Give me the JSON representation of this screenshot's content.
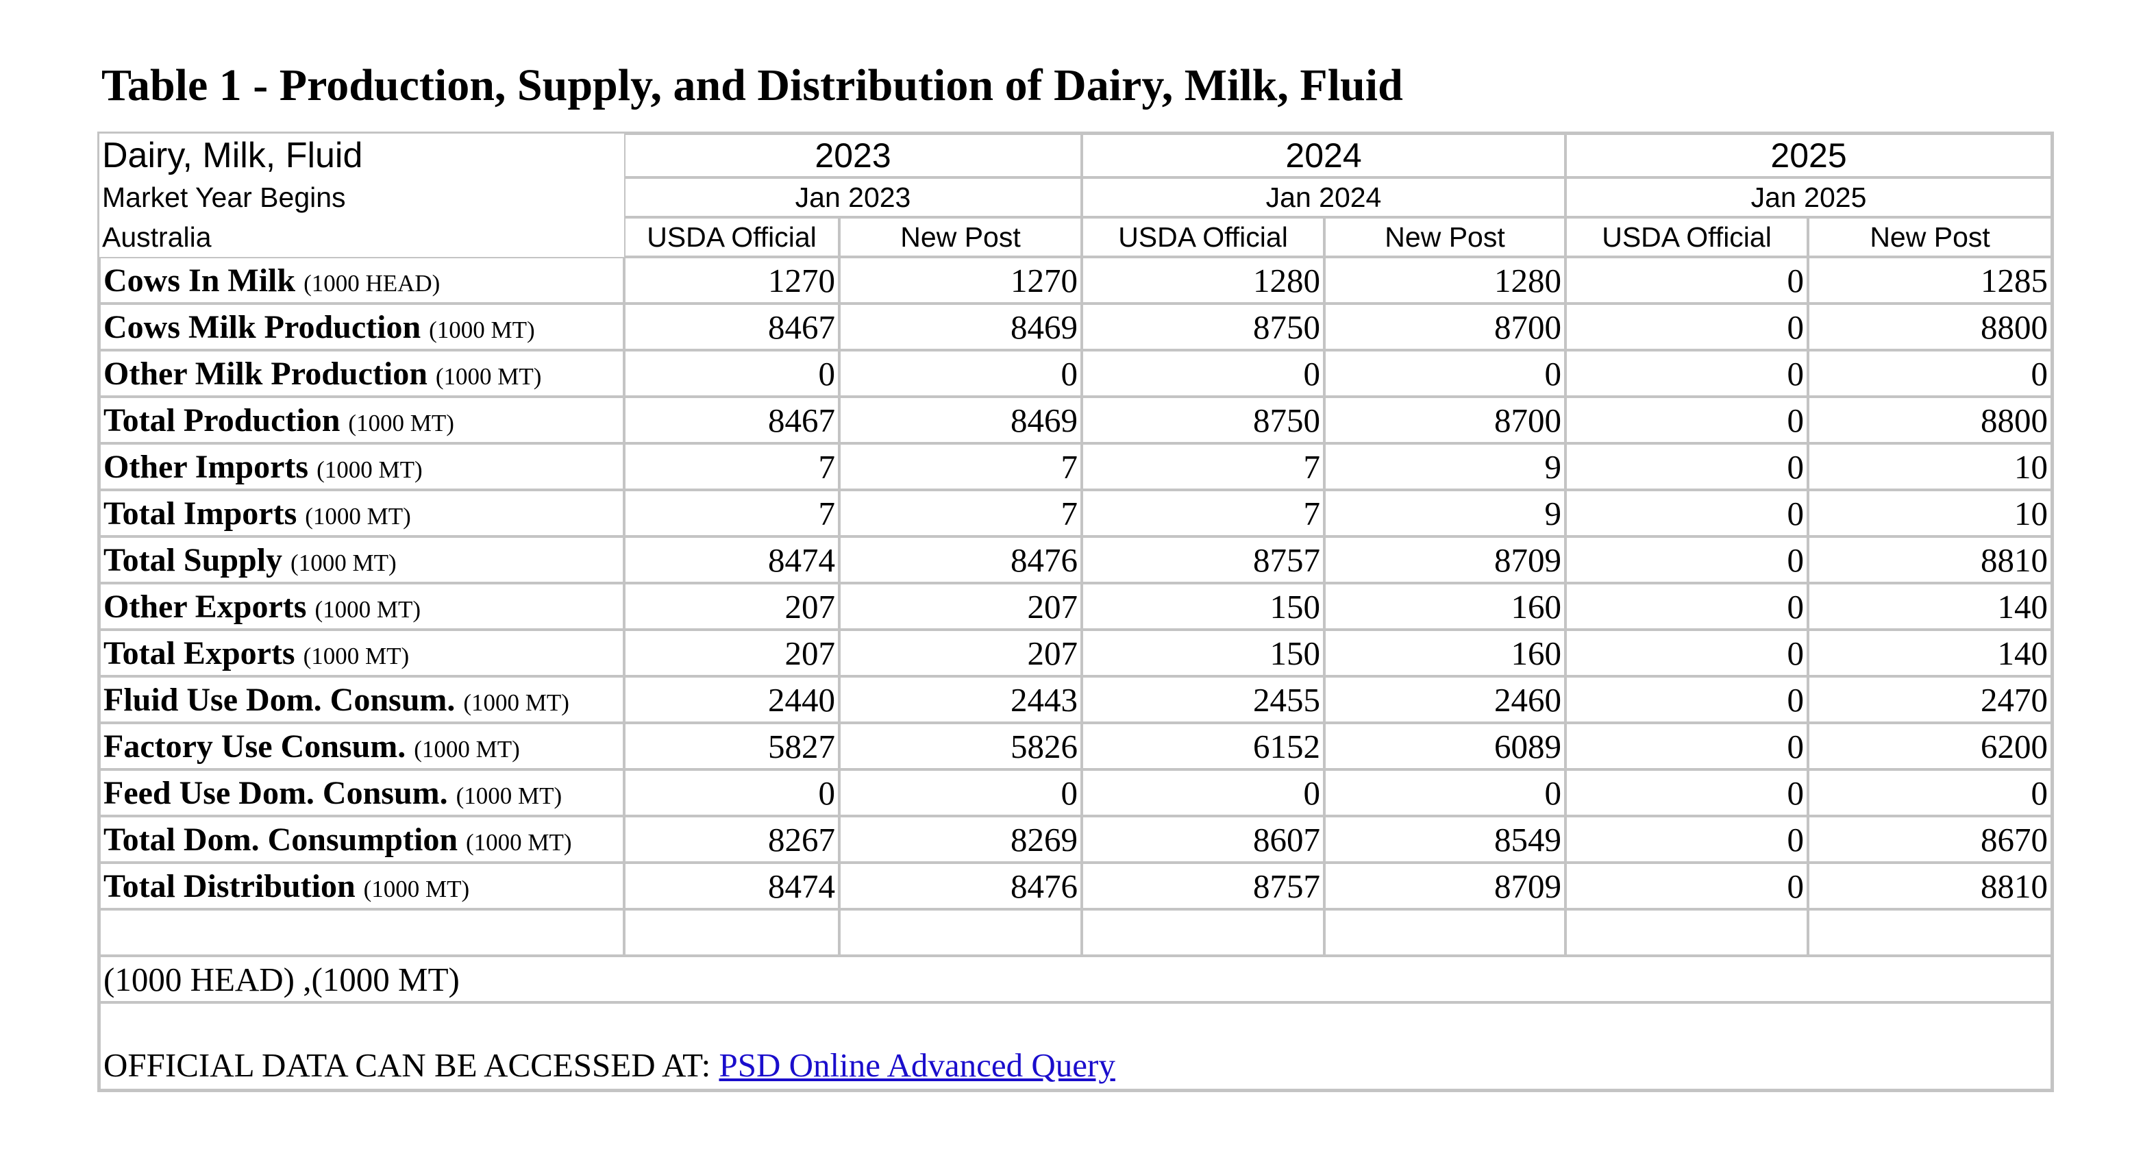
{
  "header": {
    "title": "Table 1 - Production, Supply, and Distribution of Dairy, Milk, Fluid"
  },
  "table": {
    "corner": [
      "Dairy, Milk, Fluid",
      "Market Year Begins",
      "Australia"
    ],
    "years": [
      "2023",
      "2024",
      "2025"
    ],
    "year_begins": [
      "Jan 2023",
      "Jan 2024",
      "Jan 2025"
    ],
    "sources": [
      "USDA Official",
      "New Post",
      "USDA Official",
      "New Post",
      "USDA Official",
      "New Post"
    ],
    "rows": [
      {
        "label": "Cows In Milk",
        "unit": "(1000 HEAD)",
        "values": [
          1270,
          1270,
          1280,
          1280,
          0,
          1285
        ]
      },
      {
        "label": "Cows Milk Production",
        "unit": "(1000 MT)",
        "values": [
          8467,
          8469,
          8750,
          8700,
          0,
          8800
        ]
      },
      {
        "label": "Other Milk Production",
        "unit": "(1000 MT)",
        "values": [
          0,
          0,
          0,
          0,
          0,
          0
        ]
      },
      {
        "label": "Total Production",
        "unit": "(1000 MT)",
        "values": [
          8467,
          8469,
          8750,
          8700,
          0,
          8800
        ]
      },
      {
        "label": "Other Imports",
        "unit": "(1000 MT)",
        "values": [
          7,
          7,
          7,
          9,
          0,
          10
        ]
      },
      {
        "label": "Total Imports",
        "unit": "(1000 MT)",
        "values": [
          7,
          7,
          7,
          9,
          0,
          10
        ]
      },
      {
        "label": "Total Supply",
        "unit": "(1000 MT)",
        "values": [
          8474,
          8476,
          8757,
          8709,
          0,
          8810
        ]
      },
      {
        "label": "Other Exports",
        "unit": "(1000 MT)",
        "values": [
          207,
          207,
          150,
          160,
          0,
          140
        ]
      },
      {
        "label": "Total Exports",
        "unit": "(1000 MT)",
        "values": [
          207,
          207,
          150,
          160,
          0,
          140
        ]
      },
      {
        "label": "Fluid Use Dom. Consum.",
        "unit": "(1000 MT)",
        "values": [
          2440,
          2443,
          2455,
          2460,
          0,
          2470
        ]
      },
      {
        "label": "Factory Use Consum.",
        "unit": "(1000 MT)",
        "values": [
          5827,
          5826,
          6152,
          6089,
          0,
          6200
        ]
      },
      {
        "label": "Feed Use Dom. Consum.",
        "unit": "(1000 MT)",
        "values": [
          0,
          0,
          0,
          0,
          0,
          0
        ]
      },
      {
        "label": "Total Dom. Consumption",
        "unit": "(1000 MT)",
        "values": [
          8267,
          8269,
          8607,
          8549,
          0,
          8670
        ]
      },
      {
        "label": "Total Distribution",
        "unit": "(1000 MT)",
        "values": [
          8474,
          8476,
          8757,
          8709,
          0,
          8810
        ]
      }
    ],
    "units_note": "(1000 HEAD) ,(1000 MT)",
    "access_text": "OFFICIAL DATA CAN BE ACCESSED AT:",
    "access_link": "PSD Online Advanced Query"
  }
}
